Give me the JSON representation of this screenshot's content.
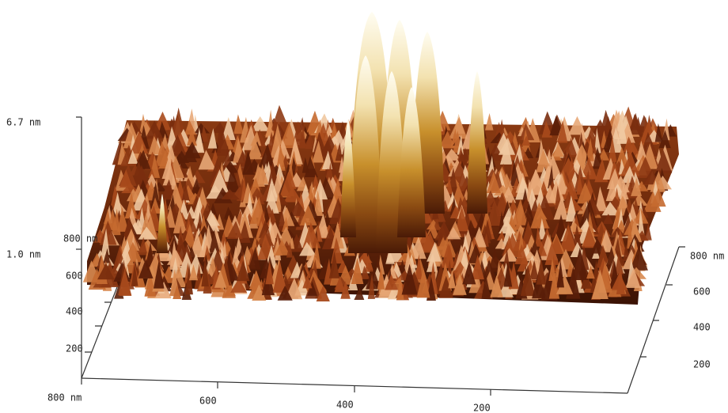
{
  "z_axis": {
    "max_label": "6.7 nm",
    "min_label": "1.0 nm"
  },
  "left_axis": {
    "labels": [
      "800 nm",
      "600",
      "400",
      "200"
    ]
  },
  "front_axis": {
    "labels": [
      "800 nm",
      "600",
      "400",
      "200"
    ]
  },
  "right_axis": {
    "labels": [
      "800 nm",
      "600",
      "400",
      "200"
    ]
  }
}
